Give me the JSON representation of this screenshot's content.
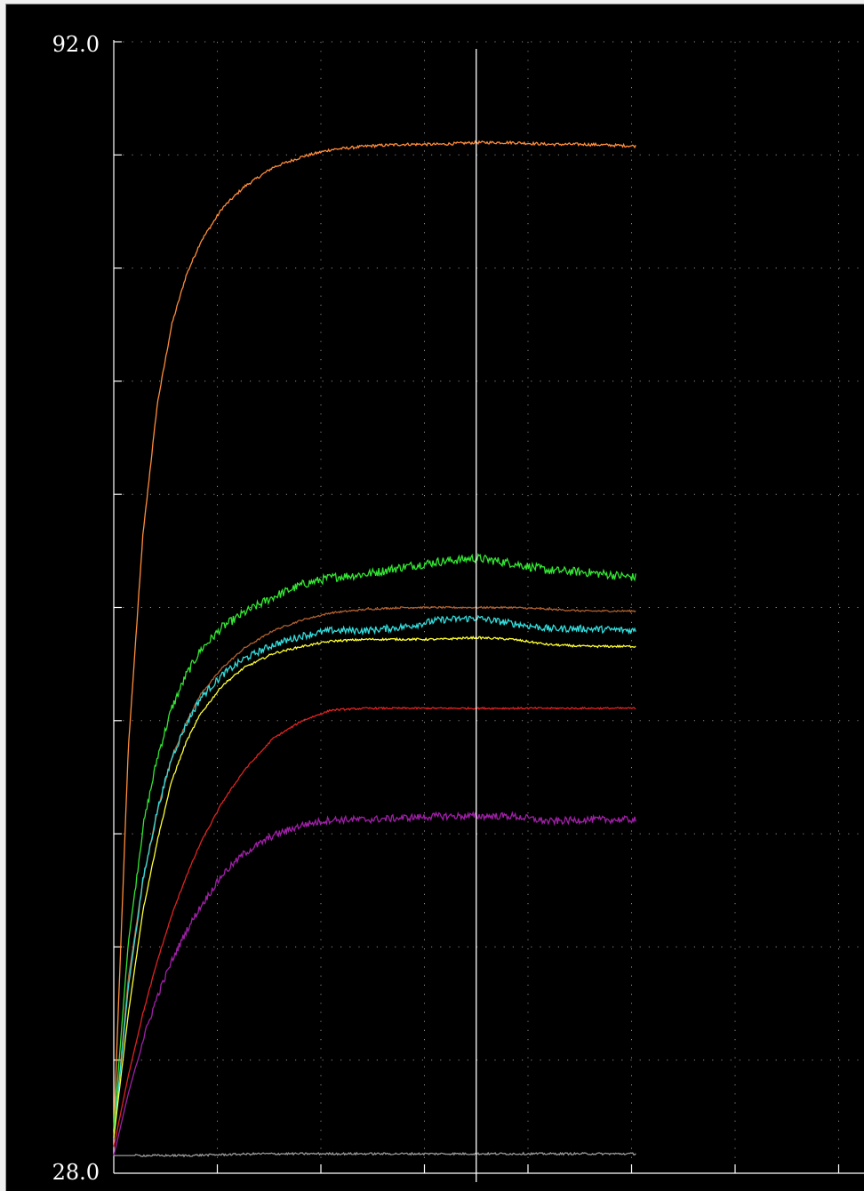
{
  "chart_data": {
    "type": "line",
    "title": "",
    "xlabel": "",
    "ylabel": "",
    "ylim": [
      28.0,
      92.0
    ],
    "y_tick_labels": [
      "92.0",
      "28.0"
    ],
    "y_divisions": 10,
    "x_divisions": 7,
    "xlim": [
      0,
      100
    ],
    "x_data_end": 72,
    "cursor_x": 50,
    "grid": true,
    "grid_style": "dotted",
    "background": "#000000",
    "axis_color": "#ffffff",
    "cursor_color": "#ffffff",
    "series": [
      {
        "color": "#ff8c3a",
        "x": [
          0,
          2,
          4,
          6,
          8,
          10,
          12,
          15,
          18,
          22,
          26,
          30,
          35,
          40,
          45,
          50,
          55,
          60,
          65,
          72
        ],
        "y": [
          30.5,
          52,
          64,
          71.5,
          76,
          78.8,
          80.7,
          82.6,
          83.8,
          84.9,
          85.5,
          85.9,
          86.1,
          86.2,
          86.2,
          86.3,
          86.3,
          86.2,
          86.2,
          86.1
        ],
        "noise": 0.08
      },
      {
        "color": "#33e633",
        "x": [
          0,
          2,
          4,
          6,
          8,
          10,
          12,
          15,
          18,
          22,
          26,
          30,
          35,
          40,
          45,
          50,
          55,
          60,
          65,
          72
        ],
        "y": [
          30.5,
          41,
          47.5,
          51.5,
          54.3,
          56.2,
          57.6,
          58.9,
          59.7,
          60.6,
          61.3,
          61.7,
          61.9,
          62.3,
          62.6,
          62.8,
          62.5,
          62.1,
          62.0,
          61.7
        ],
        "noise": 0.25
      },
      {
        "color": "#b06030",
        "x": [
          0,
          2,
          4,
          6,
          8,
          10,
          12,
          15,
          18,
          22,
          26,
          30,
          35,
          40,
          45,
          50,
          55,
          60,
          65,
          72
        ],
        "y": [
          30,
          39,
          44.5,
          48.5,
          51.5,
          53.5,
          55.1,
          56.6,
          57.7,
          58.7,
          59.3,
          59.7,
          59.9,
          60.0,
          60.0,
          60.0,
          60.0,
          59.9,
          59.8,
          59.8
        ],
        "noise": 0.05
      },
      {
        "color": "#33dddd",
        "x": [
          0,
          2,
          4,
          6,
          8,
          10,
          12,
          15,
          18,
          22,
          26,
          30,
          35,
          40,
          45,
          50,
          55,
          60,
          65,
          72
        ],
        "y": [
          30,
          38.5,
          44.5,
          48.5,
          51.5,
          53.4,
          54.9,
          56.2,
          57.1,
          57.9,
          58.4,
          58.7,
          58.7,
          58.9,
          59.3,
          59.4,
          59.1,
          58.8,
          58.8,
          58.7
        ],
        "noise": 0.2
      },
      {
        "color": "#ffff33",
        "x": [
          0,
          2,
          4,
          6,
          8,
          10,
          12,
          15,
          18,
          22,
          26,
          30,
          35,
          40,
          45,
          50,
          55,
          60,
          65,
          72
        ],
        "y": [
          30,
          37,
          42.8,
          46.8,
          50.2,
          52.4,
          54.0,
          55.6,
          56.6,
          57.4,
          57.8,
          58.1,
          58.2,
          58.2,
          58.2,
          58.3,
          58.2,
          57.9,
          57.8,
          57.8
        ],
        "noise": 0.06
      },
      {
        "color": "#e02222",
        "x": [
          0,
          2,
          4,
          6,
          8,
          10,
          12,
          15,
          18,
          22,
          26,
          30,
          35,
          40,
          45,
          50,
          55,
          60,
          65,
          72
        ],
        "y": [
          29.5,
          33.5,
          37,
          40,
          42.6,
          44.8,
          46.7,
          49.0,
          50.8,
          52.6,
          53.6,
          54.2,
          54.3,
          54.3,
          54.3,
          54.3,
          54.3,
          54.3,
          54.3,
          54.3
        ],
        "noise": 0.05
      },
      {
        "color": "#a020a8",
        "x": [
          0,
          2,
          4,
          6,
          8,
          10,
          12,
          15,
          18,
          22,
          26,
          30,
          35,
          40,
          45,
          50,
          55,
          60,
          65,
          72
        ],
        "y": [
          29,
          32.5,
          35.5,
          38,
          40.0,
          41.7,
          43.1,
          44.9,
          46.1,
          47.1,
          47.7,
          48.0,
          48.0,
          48.1,
          48.2,
          48.2,
          48.2,
          47.9,
          48.0,
          48.0
        ],
        "noise": 0.2
      },
      {
        "color": "#9a9a9a",
        "x": [
          0,
          10,
          20,
          30,
          40,
          50,
          60,
          72
        ],
        "y": [
          29.0,
          29.0,
          29.1,
          29.1,
          29.1,
          29.1,
          29.1,
          29.1
        ],
        "noise": 0.06
      }
    ]
  }
}
